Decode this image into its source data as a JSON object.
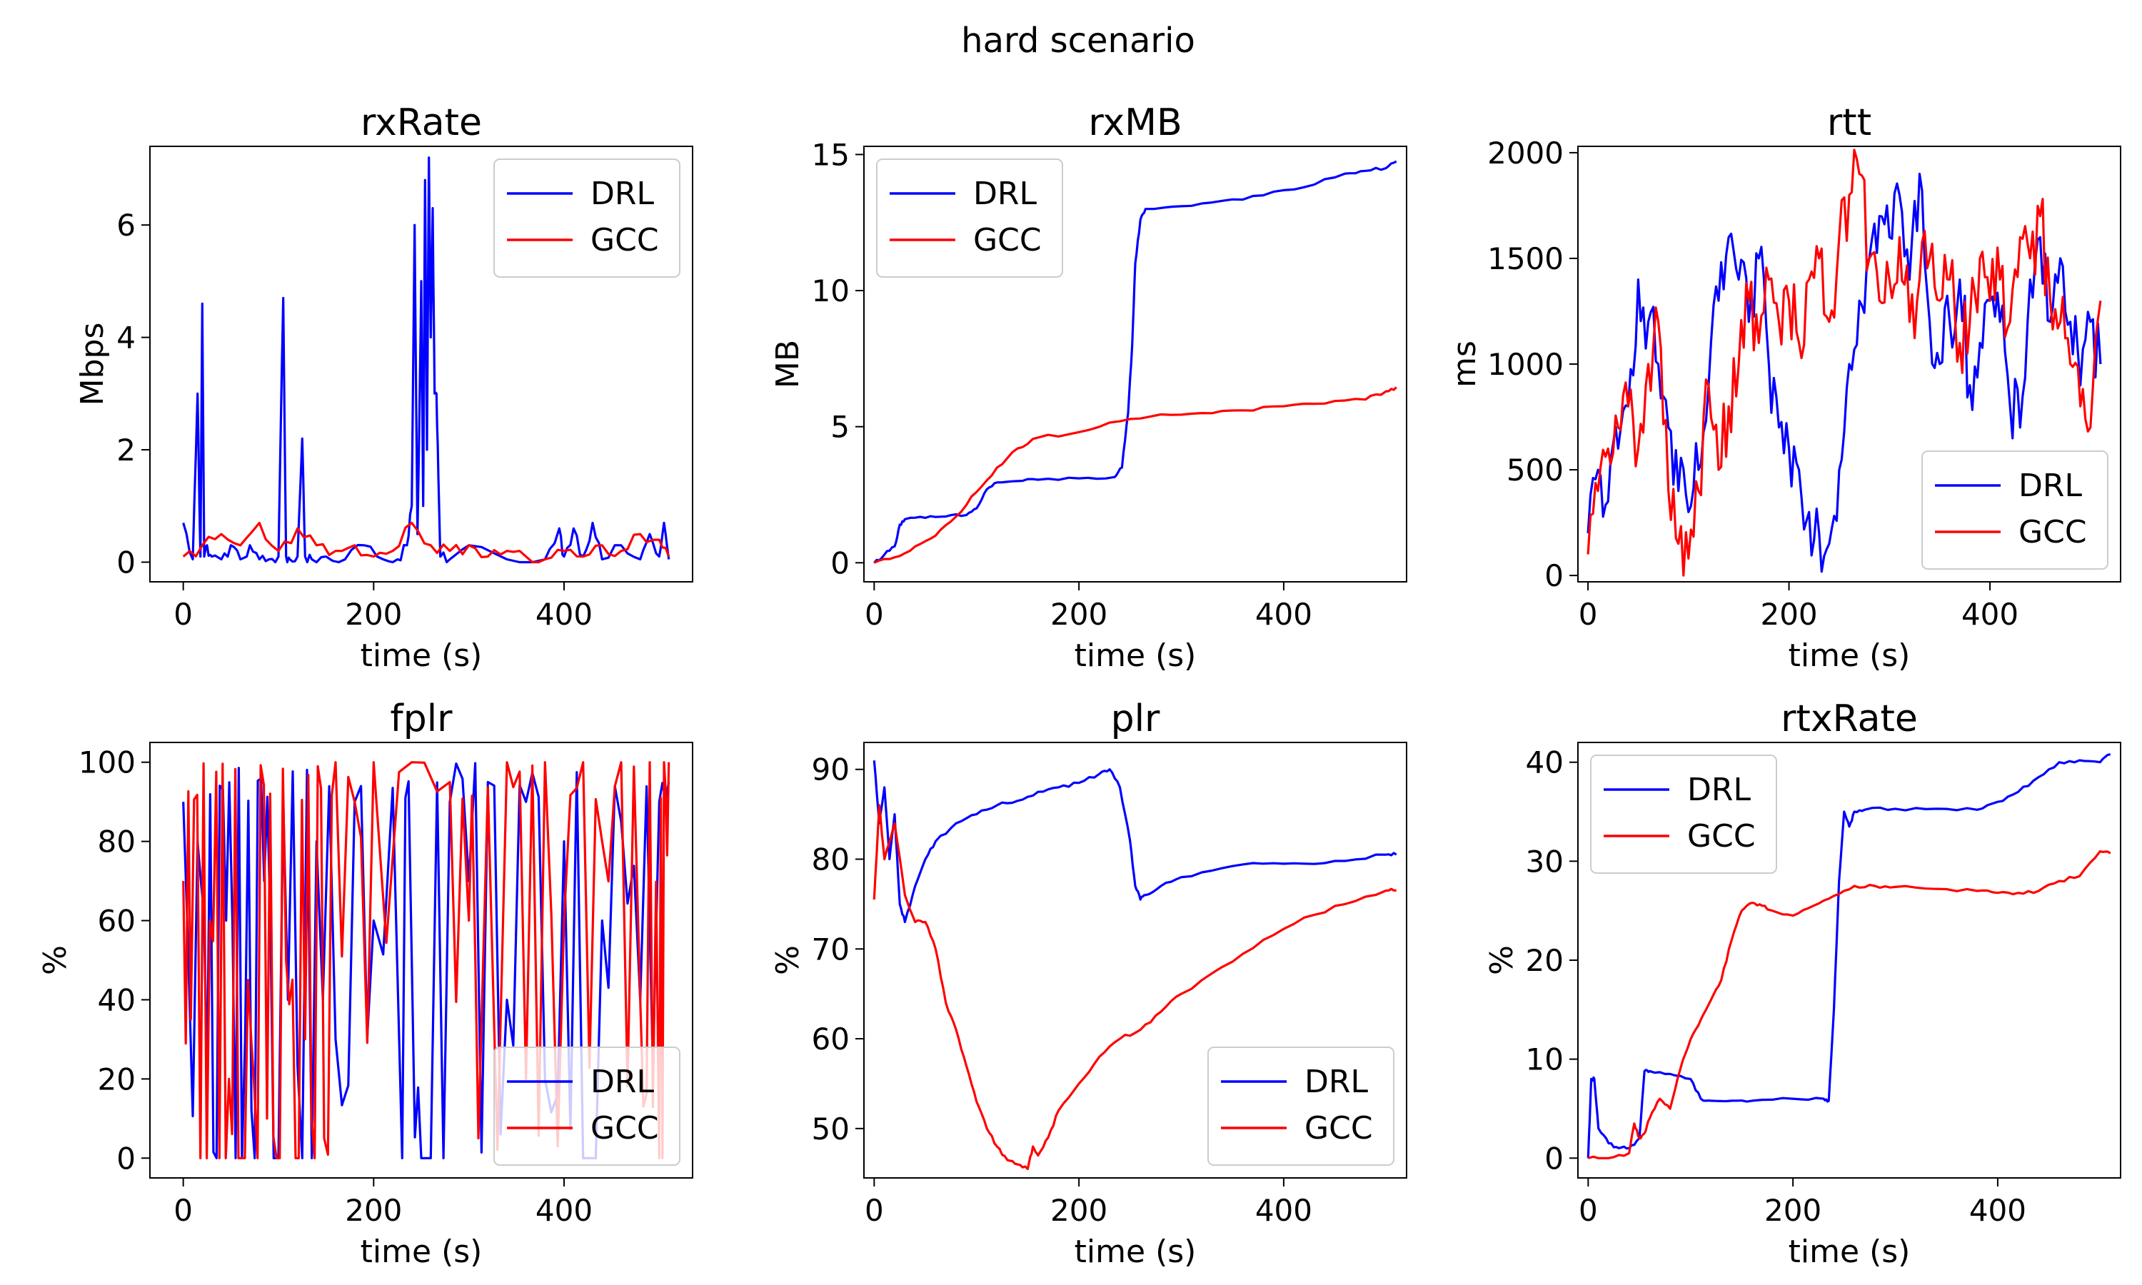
{
  "figure": {
    "suptitle": "hard scenario"
  },
  "chart_data": [
    {
      "id": "rxRate",
      "type": "line",
      "title": "rxRate",
      "xlabel": "time (s)",
      "ylabel": "Mbps",
      "xlim": [
        -35,
        535
      ],
      "ylim": [
        -0.35,
        7.4
      ],
      "xticks": [
        0,
        200,
        400
      ],
      "yticks": [
        0,
        2,
        4,
        6
      ],
      "legend": "top-right",
      "series": [
        {
          "name": "DRL",
          "color": "#0000ff",
          "kind": "spiky",
          "x": [
            0,
            10,
            15,
            18,
            20,
            22,
            25,
            30,
            40,
            50,
            60,
            70,
            80,
            90,
            100,
            105,
            108,
            112,
            120,
            125,
            128,
            135,
            150,
            170,
            190,
            210,
            225,
            235,
            240,
            243,
            246,
            248,
            250,
            252,
            254,
            256,
            258,
            260,
            262,
            264,
            266,
            268,
            270,
            280,
            300,
            340,
            380,
            395,
            400,
            410,
            420,
            430,
            440,
            460,
            480,
            490,
            500,
            505,
            510
          ],
          "y": [
            0.7,
            0.05,
            3.0,
            0.1,
            4.6,
            0.1,
            0.3,
            0.1,
            0.05,
            0.3,
            0.05,
            0.3,
            0.05,
            0.05,
            0.1,
            4.7,
            0.1,
            0.05,
            0.1,
            2.2,
            0.1,
            0.05,
            0.1,
            0.05,
            0.3,
            0.05,
            0.05,
            0.3,
            1.0,
            6.0,
            0.5,
            2.5,
            5.0,
            1.0,
            6.8,
            2.0,
            7.2,
            4.0,
            6.3,
            3.0,
            3.0,
            1.5,
            0.1,
            0.05,
            0.3,
            0.05,
            0.05,
            0.6,
            0.1,
            0.6,
            0.1,
            0.7,
            0.05,
            0.3,
            0.05,
            0.5,
            0.1,
            0.7,
            0.05
          ]
        },
        {
          "name": "GCC",
          "color": "#ff0000",
          "kind": "spiky",
          "x": [
            0,
            20,
            40,
            60,
            80,
            100,
            120,
            140,
            160,
            180,
            200,
            220,
            240,
            260,
            280,
            300,
            320,
            340,
            360,
            380,
            400,
            420,
            440,
            460,
            480,
            500,
            510
          ],
          "y": [
            0.1,
            0.3,
            0.5,
            0.3,
            0.7,
            0.2,
            0.6,
            0.3,
            0.2,
            0.3,
            0.1,
            0.2,
            0.7,
            0.3,
            0.2,
            0.3,
            0.1,
            0.2,
            0.1,
            0.05,
            0.2,
            0.1,
            0.3,
            0.2,
            0.5,
            0.4,
            0.1
          ]
        }
      ]
    },
    {
      "id": "rxMB",
      "type": "line",
      "title": "rxMB",
      "xlabel": "time (s)",
      "ylabel": "MB",
      "xlim": [
        -10,
        520
      ],
      "ylim": [
        -0.7,
        15.3
      ],
      "xticks": [
        0,
        200,
        400
      ],
      "yticks": [
        0,
        5,
        10,
        15
      ],
      "legend": "top-left",
      "series": [
        {
          "name": "DRL",
          "color": "#0000ff",
          "kind": "smooth",
          "x": [
            0,
            10,
            20,
            25,
            30,
            50,
            70,
            90,
            100,
            110,
            120,
            140,
            160,
            200,
            235,
            242,
            248,
            252,
            255,
            260,
            265,
            300,
            340,
            380,
            420,
            460,
            480,
            500,
            510
          ],
          "y": [
            0,
            0.3,
            0.6,
            1.4,
            1.6,
            1.65,
            1.7,
            1.75,
            2.0,
            2.7,
            2.95,
            3.0,
            3.05,
            3.1,
            3.15,
            3.5,
            5.5,
            8.0,
            11.0,
            12.6,
            13.0,
            13.1,
            13.3,
            13.5,
            13.8,
            14.3,
            14.4,
            14.5,
            14.75
          ]
        },
        {
          "name": "GCC",
          "color": "#ff0000",
          "kind": "smooth",
          "x": [
            0,
            20,
            40,
            60,
            80,
            100,
            120,
            140,
            160,
            200,
            240,
            280,
            320,
            360,
            400,
            440,
            480,
            500,
            510
          ],
          "y": [
            0,
            0.2,
            0.6,
            1.0,
            1.7,
            2.6,
            3.5,
            4.2,
            4.6,
            4.8,
            5.2,
            5.45,
            5.5,
            5.6,
            5.75,
            5.85,
            6.0,
            6.3,
            6.45
          ]
        }
      ]
    },
    {
      "id": "rtt",
      "type": "line",
      "title": "rtt",
      "xlabel": "time (s)",
      "ylabel": "ms",
      "xlim": [
        -10,
        530
      ],
      "ylim": [
        -30,
        2030
      ],
      "xticks": [
        0,
        200,
        400
      ],
      "yticks": [
        0,
        500,
        1000,
        1500,
        2000
      ],
      "legend": "bottom-right",
      "series": [
        {
          "name": "DRL",
          "color": "#0000ff",
          "kind": "noisy",
          "x": [
            0,
            10,
            20,
            30,
            40,
            50,
            60,
            70,
            80,
            90,
            100,
            110,
            120,
            130,
            140,
            150,
            160,
            170,
            180,
            190,
            200,
            210,
            220,
            230,
            240,
            250,
            260,
            270,
            280,
            290,
            300,
            310,
            320,
            330,
            340,
            350,
            360,
            370,
            380,
            390,
            400,
            410,
            420,
            430,
            440,
            450,
            460,
            470,
            480,
            490,
            500,
            510
          ],
          "y": [
            200,
            500,
            350,
            600,
            800,
            1400,
            1200,
            1000,
            700,
            400,
            300,
            500,
            900,
            1300,
            1600,
            1400,
            1200,
            1500,
            1000,
            700,
            600,
            500,
            300,
            200,
            150,
            500,
            1000,
            1300,
            1500,
            1700,
            1600,
            1800,
            1400,
            1900,
            1200,
            1000,
            1200,
            1400,
            900,
            1100,
            1300,
            1200,
            800,
            700,
            1400,
            1600,
            1200,
            1500,
            1200,
            900,
            1200,
            1000
          ]
        },
        {
          "name": "GCC",
          "color": "#ff0000",
          "kind": "noisy",
          "x": [
            0,
            10,
            20,
            30,
            40,
            50,
            60,
            70,
            80,
            90,
            100,
            110,
            120,
            130,
            140,
            150,
            160,
            170,
            180,
            190,
            200,
            210,
            220,
            230,
            240,
            250,
            260,
            270,
            280,
            290,
            300,
            310,
            320,
            330,
            340,
            350,
            360,
            370,
            380,
            390,
            400,
            410,
            420,
            430,
            440,
            450,
            460,
            470,
            480,
            490,
            500,
            510
          ],
          "y": [
            100,
            400,
            600,
            700,
            800,
            600,
            1000,
            1200,
            400,
            150,
            80,
            400,
            900,
            500,
            800,
            1000,
            1300,
            1100,
            1400,
            1200,
            1300,
            1100,
            1400,
            1500,
            1200,
            1600,
            1800,
            1900,
            1500,
            1300,
            1400,
            1600,
            1200,
            1400,
            1500,
            1300,
            1400,
            1100,
            1200,
            1500,
            1300,
            1400,
            1200,
            1600,
            1500,
            1700,
            1300,
            1200,
            1000,
            800,
            700,
            1300
          ]
        }
      ]
    },
    {
      "id": "fplr",
      "type": "line",
      "title": "fplr",
      "xlabel": "time (s)",
      "ylabel": "%",
      "xlim": [
        -35,
        535
      ],
      "ylim": [
        -5,
        105
      ],
      "xticks": [
        0,
        200,
        400
      ],
      "yticks": [
        0,
        20,
        40,
        60,
        80,
        100
      ],
      "legend": "bottom-right",
      "series": [
        {
          "name": "DRL",
          "color": "#0000ff",
          "kind": "drops",
          "x": [
            0,
            15,
            25,
            35,
            45,
            55,
            65,
            75,
            85,
            95,
            110,
            125,
            140,
            160,
            180,
            200,
            230,
            240,
            250,
            260,
            280,
            300,
            320,
            340,
            360,
            380,
            400,
            420,
            440,
            460,
            480,
            500,
            510
          ],
          "y": [
            90,
            80,
            20,
            0,
            60,
            0,
            30,
            0,
            70,
            0,
            40,
            0,
            80,
            30,
            90,
            60,
            0,
            50,
            0,
            0,
            90,
            70,
            95,
            40,
            90,
            20,
            80,
            0,
            60,
            85,
            40,
            90,
            95
          ]
        },
        {
          "name": "GCC",
          "color": "#ff0000",
          "kind": "drops",
          "x": [
            0,
            8,
            18,
            28,
            38,
            48,
            58,
            68,
            78,
            88,
            98,
            108,
            118,
            128,
            138,
            148,
            160,
            180,
            200,
            240,
            280,
            300,
            310,
            340,
            360,
            380,
            400,
            420,
            440,
            460,
            480,
            490,
            500,
            505,
            510
          ],
          "y": [
            70,
            35,
            0,
            60,
            0,
            20,
            0,
            45,
            0,
            10,
            0,
            50,
            0,
            30,
            0,
            5,
            100,
            90,
            100,
            100,
            95,
            60,
            5,
            100,
            20,
            100,
            60,
            100,
            80,
            100,
            40,
            100,
            0,
            100,
            100
          ]
        }
      ]
    },
    {
      "id": "plr",
      "type": "line",
      "title": "plr",
      "xlabel": "time (s)",
      "ylabel": "%",
      "xlim": [
        -10,
        520
      ],
      "ylim": [
        44.5,
        93
      ],
      "xticks": [
        0,
        200,
        400
      ],
      "yticks": [
        50,
        60,
        70,
        80,
        90
      ],
      "legend": "bottom-right",
      "series": [
        {
          "name": "DRL",
          "color": "#0000ff",
          "kind": "smooth",
          "x": [
            0,
            5,
            10,
            15,
            20,
            25,
            30,
            40,
            50,
            60,
            80,
            100,
            120,
            140,
            160,
            180,
            200,
            220,
            230,
            240,
            250,
            255,
            260,
            265,
            280,
            300,
            340,
            380,
            420,
            460,
            500,
            510
          ],
          "y": [
            91,
            84,
            88,
            80,
            85,
            75,
            73,
            77,
            80,
            82,
            84,
            85,
            86,
            86.5,
            87.5,
            88,
            88.5,
            89.5,
            90,
            88,
            82,
            77,
            75.5,
            76,
            77,
            78,
            79,
            79.5,
            79.5,
            79.8,
            80.5,
            80.5
          ]
        },
        {
          "name": "GCC",
          "color": "#ff0000",
          "kind": "smooth",
          "x": [
            0,
            5,
            10,
            20,
            30,
            40,
            50,
            60,
            70,
            80,
            90,
            100,
            110,
            120,
            130,
            140,
            150,
            155,
            160,
            170,
            180,
            200,
            220,
            240,
            260,
            280,
            300,
            340,
            380,
            420,
            460,
            500,
            510
          ],
          "y": [
            75.5,
            86,
            80,
            84,
            76,
            73,
            73,
            70,
            64,
            61,
            57,
            53,
            50,
            48,
            46.5,
            46,
            45.5,
            48,
            47,
            49,
            52,
            55,
            58,
            60,
            61,
            63,
            65,
            68,
            71,
            73.5,
            75,
            76.5,
            76.5
          ]
        }
      ]
    },
    {
      "id": "rtxRate",
      "type": "line",
      "title": "rtxRate",
      "xlabel": "time (s)",
      "ylabel": "%",
      "xlim": [
        -10,
        520
      ],
      "ylim": [
        -2,
        42
      ],
      "xticks": [
        0,
        200,
        400
      ],
      "yticks": [
        0,
        10,
        20,
        30,
        40
      ],
      "legend": "top-left",
      "series": [
        {
          "name": "DRL",
          "color": "#0000ff",
          "kind": "smooth",
          "x": [
            0,
            3,
            6,
            10,
            20,
            30,
            40,
            50,
            55,
            60,
            80,
            100,
            110,
            120,
            140,
            160,
            200,
            230,
            235,
            240,
            245,
            250,
            255,
            260,
            270,
            300,
            340,
            380,
            400,
            420,
            440,
            460,
            480,
            500,
            510
          ],
          "y": [
            0,
            8,
            8,
            3,
            1.5,
            1,
            1,
            2,
            8.8,
            8.8,
            8.5,
            8,
            6,
            5.8,
            5.8,
            5.8,
            6,
            6,
            5.8,
            15,
            28,
            35,
            33.5,
            35,
            35.2,
            35.3,
            35.3,
            35.2,
            36,
            37,
            38.5,
            40,
            40.2,
            40,
            40.8
          ]
        },
        {
          "name": "GCC",
          "color": "#ff0000",
          "kind": "smooth",
          "x": [
            0,
            20,
            40,
            45,
            50,
            55,
            60,
            70,
            80,
            90,
            100,
            110,
            120,
            130,
            140,
            150,
            160,
            170,
            180,
            200,
            220,
            240,
            260,
            280,
            300,
            340,
            380,
            400,
            420,
            440,
            460,
            480,
            500,
            510
          ],
          "y": [
            0,
            0,
            0.5,
            3.5,
            2,
            2.5,
            4,
            6,
            5,
            9,
            12,
            14,
            16,
            18,
            22,
            25,
            25.8,
            25.5,
            25,
            24.5,
            25.5,
            26.5,
            27.5,
            27.5,
            27.4,
            27.2,
            27,
            26.8,
            26.8,
            27,
            28,
            28.5,
            31,
            30.8
          ]
        }
      ]
    }
  ]
}
